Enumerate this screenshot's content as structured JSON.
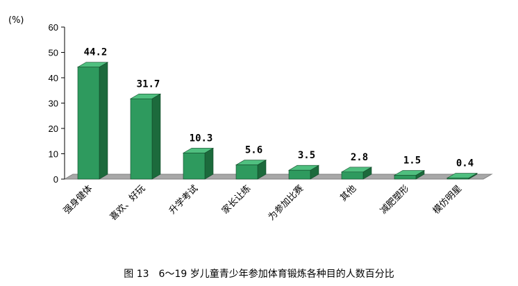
{
  "chart_data": {
    "type": "bar",
    "unit_label": "(%)",
    "categories": [
      "强身健体",
      "喜欢、好玩",
      "升学考试",
      "家长让练",
      "为参加比赛",
      "其他",
      "减肥塑形",
      "模仿明星"
    ],
    "values": [
      44.2,
      31.7,
      10.3,
      5.6,
      3.5,
      2.8,
      1.5,
      0.4
    ],
    "value_labels": [
      "44.2",
      "31.7",
      "10.3",
      "5.6",
      "3.5",
      "2.8",
      "1.5",
      "0.4"
    ],
    "ylim": [
      0,
      60
    ],
    "yticks": [
      0,
      10,
      20,
      30,
      40,
      50,
      60
    ],
    "grid": false,
    "legend": "none",
    "colors": {
      "bar_front": "#2e9a5e",
      "bar_side": "#1c6a3c",
      "bar_top": "#4fbf7f",
      "floor": "#a8a8a8",
      "floor_edge": "#808080"
    },
    "caption": "图 13　6～19 岁儿童青少年参加体育锻炼各种目的人数百分比"
  }
}
